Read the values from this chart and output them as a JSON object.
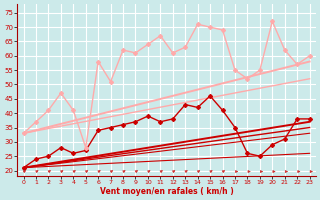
{
  "title": "",
  "xlabel": "Vent moyen/en rafales ( km/h )",
  "ylabel": "",
  "background_color": "#cceaea",
  "grid_color": "#ffffff",
  "xlim": [
    -0.5,
    23.5
  ],
  "ylim": [
    18,
    78
  ],
  "yticks": [
    20,
    25,
    30,
    35,
    40,
    45,
    50,
    55,
    60,
    65,
    70,
    75
  ],
  "xticks": [
    0,
    1,
    2,
    3,
    4,
    5,
    6,
    7,
    8,
    9,
    10,
    11,
    12,
    13,
    14,
    15,
    16,
    17,
    18,
    19,
    20,
    21,
    22,
    23
  ],
  "series": [
    {
      "x": [
        0,
        1,
        2,
        3,
        4,
        5,
        6,
        7,
        8,
        9,
        10,
        11,
        12,
        13,
        14,
        15,
        16,
        17,
        18,
        19,
        20,
        21,
        22,
        23
      ],
      "y": [
        21,
        24,
        25,
        28,
        26,
        27,
        34,
        35,
        36,
        37,
        39,
        37,
        38,
        43,
        42,
        46,
        41,
        35,
        26,
        25,
        29,
        31,
        38,
        38
      ],
      "color": "#cc0000",
      "lw": 1.0,
      "marker": "D",
      "ms": 2.0,
      "zorder": 5
    },
    {
      "x": [
        0,
        23
      ],
      "y": [
        21,
        37
      ],
      "color": "#cc0000",
      "lw": 1.4,
      "marker": null,
      "ms": 0,
      "zorder": 3
    },
    {
      "x": [
        0,
        23
      ],
      "y": [
        21,
        35
      ],
      "color": "#cc0000",
      "lw": 1.0,
      "marker": null,
      "ms": 0,
      "zorder": 3
    },
    {
      "x": [
        0,
        23
      ],
      "y": [
        21,
        33
      ],
      "color": "#cc0000",
      "lw": 0.8,
      "marker": null,
      "ms": 0,
      "zorder": 3
    },
    {
      "x": [
        0,
        23
      ],
      "y": [
        21,
        26
      ],
      "color": "#cc0000",
      "lw": 0.8,
      "marker": null,
      "ms": 0,
      "zorder": 3
    },
    {
      "x": [
        0,
        1,
        2,
        3,
        4,
        5,
        6,
        7,
        8,
        9,
        10,
        11,
        12,
        13,
        14,
        15,
        16,
        17,
        18,
        19,
        20,
        21,
        22,
        23
      ],
      "y": [
        33,
        37,
        41,
        47,
        41,
        28,
        58,
        51,
        62,
        61,
        64,
        67,
        61,
        63,
        71,
        70,
        69,
        55,
        52,
        55,
        72,
        62,
        57,
        60
      ],
      "color": "#ffaaaa",
      "lw": 1.0,
      "marker": "D",
      "ms": 2.0,
      "zorder": 5
    },
    {
      "x": [
        0,
        23
      ],
      "y": [
        33,
        58
      ],
      "color": "#ffaaaa",
      "lw": 1.4,
      "marker": null,
      "ms": 0,
      "zorder": 3
    },
    {
      "x": [
        0,
        23
      ],
      "y": [
        33,
        52
      ],
      "color": "#ffaaaa",
      "lw": 1.0,
      "marker": null,
      "ms": 0,
      "zorder": 3
    }
  ],
  "arrow_color": "#cc3333",
  "arrows": [
    {
      "x": 0,
      "diagonal": true
    },
    {
      "x": 1,
      "diagonal": true
    },
    {
      "x": 2,
      "diagonal": true
    },
    {
      "x": 3,
      "diagonal": true
    },
    {
      "x": 4,
      "diagonal": true
    },
    {
      "x": 5,
      "diagonal": true
    },
    {
      "x": 6,
      "diagonal": true
    },
    {
      "x": 7,
      "diagonal": true
    },
    {
      "x": 8,
      "diagonal": true
    },
    {
      "x": 9,
      "diagonal": true
    },
    {
      "x": 10,
      "diagonal": true
    },
    {
      "x": 11,
      "diagonal": true
    },
    {
      "x": 12,
      "diagonal": true
    },
    {
      "x": 13,
      "diagonal": true
    },
    {
      "x": 14,
      "diagonal": true
    },
    {
      "x": 15,
      "diagonal": true
    },
    {
      "x": 16,
      "diagonal": true
    },
    {
      "x": 17,
      "diagonal": false
    },
    {
      "x": 18,
      "diagonal": false
    },
    {
      "x": 19,
      "diagonal": false
    },
    {
      "x": 20,
      "diagonal": false
    },
    {
      "x": 21,
      "diagonal": false
    },
    {
      "x": 22,
      "diagonal": false
    },
    {
      "x": 23,
      "diagonal": false
    }
  ]
}
